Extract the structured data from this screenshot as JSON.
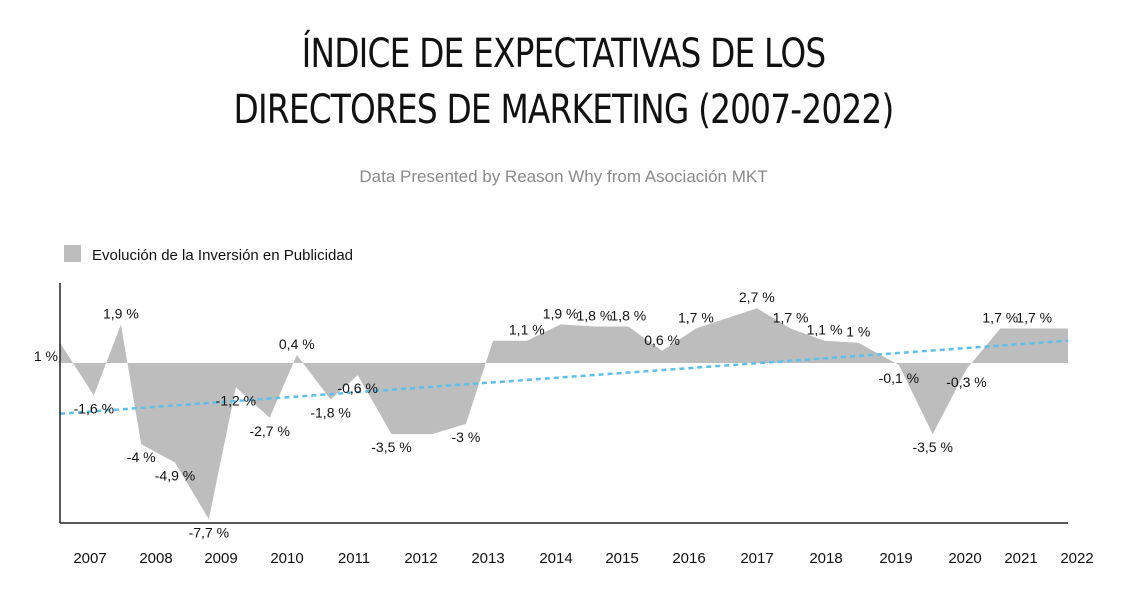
{
  "title_lines": [
    "ÍNDICE DE EXPECTATIVAS DE LOS",
    "DIRECTORES DE MARKETING (2007-2022)"
  ],
  "subtitle": "Data Presented by Reason Why from Asociación MKT",
  "colors": {
    "area": "#bdbdbd",
    "trend": "#5bc0eb",
    "axis": "#222222"
  },
  "chart_data": {
    "type": "area",
    "title": "ÍNDICE DE EXPECTATIVAS DE LOS DIRECTORES DE MARKETING (2007-2022)",
    "legend": {
      "label": "Evolución de la Inversión en Publicidad",
      "position": "top-left"
    },
    "grid": false,
    "ylim": [
      -8,
      3
    ],
    "x_ticks": [
      "2007",
      "2008",
      "2009",
      "2010",
      "2011",
      "2012",
      "2013",
      "2014",
      "2015",
      "2016",
      "2017",
      "2018",
      "2019",
      "2020",
      "2021",
      "2022"
    ],
    "series": [
      {
        "name": "Evolución de la Inversión en Publicidad",
        "points": [
          {
            "t": 2006.9,
            "v": 1,
            "label": "1 %"
          },
          {
            "t": 2007.4,
            "v": -1.6,
            "label": "-1,6 %"
          },
          {
            "t": 2007.8,
            "v": 1.9,
            "label": "1,9 %"
          },
          {
            "t": 2008.1,
            "v": -4,
            "label": "-4 %"
          },
          {
            "t": 2008.6,
            "v": -4.9,
            "label": "-4,9 %"
          },
          {
            "t": 2009.1,
            "v": -7.7,
            "label": "-7,7 %"
          },
          {
            "t": 2009.5,
            "v": -1.2,
            "label": "-1,2 %"
          },
          {
            "t": 2010.0,
            "v": -2.7,
            "label": "-2,7 %"
          },
          {
            "t": 2010.4,
            "v": 0.4,
            "label": "0,4 %"
          },
          {
            "t": 2010.9,
            "v": -1.8,
            "label": "-1,8 %"
          },
          {
            "t": 2011.3,
            "v": -0.6,
            "label": "-0,6 %"
          },
          {
            "t": 2011.8,
            "v": -3.5,
            "label": "-3,5 %"
          },
          {
            "t": 2012.4,
            "v": -3.5,
            "label": null
          },
          {
            "t": 2012.9,
            "v": -3,
            "label": "-3 %"
          },
          {
            "t": 2013.3,
            "v": 1.1,
            "label": null
          },
          {
            "t": 2013.8,
            "v": 1.1,
            "label": "1,1 %"
          },
          {
            "t": 2014.3,
            "v": 1.9,
            "label": "1,9 %"
          },
          {
            "t": 2014.8,
            "v": 1.8,
            "label": "1,8 %"
          },
          {
            "t": 2015.3,
            "v": 1.8,
            "label": "1,8 %"
          },
          {
            "t": 2015.8,
            "v": 0.6,
            "label": "0,6 %"
          },
          {
            "t": 2016.3,
            "v": 1.7,
            "label": "1,7 %"
          },
          {
            "t": 2017.2,
            "v": 2.7,
            "label": "2,7 %"
          },
          {
            "t": 2017.7,
            "v": 1.7,
            "label": "1,7 %"
          },
          {
            "t": 2018.2,
            "v": 1.1,
            "label": "1,1 %"
          },
          {
            "t": 2018.7,
            "v": 1,
            "label": "1 %"
          },
          {
            "t": 2019.3,
            "v": -0.1,
            "label": "-0,1 %"
          },
          {
            "t": 2019.8,
            "v": -3.5,
            "label": "-3,5 %"
          },
          {
            "t": 2020.3,
            "v": -0.3,
            "label": "-0,3 %"
          },
          {
            "t": 2020.8,
            "v": 1.7,
            "label": "1,7 %"
          },
          {
            "t": 2021.3,
            "v": 1.7,
            "label": "1,7 %"
          }
        ]
      }
    ],
    "trendline": {
      "style": "dashed",
      "color": "#5bc0eb",
      "start": -2.5,
      "end": 1.1
    }
  }
}
